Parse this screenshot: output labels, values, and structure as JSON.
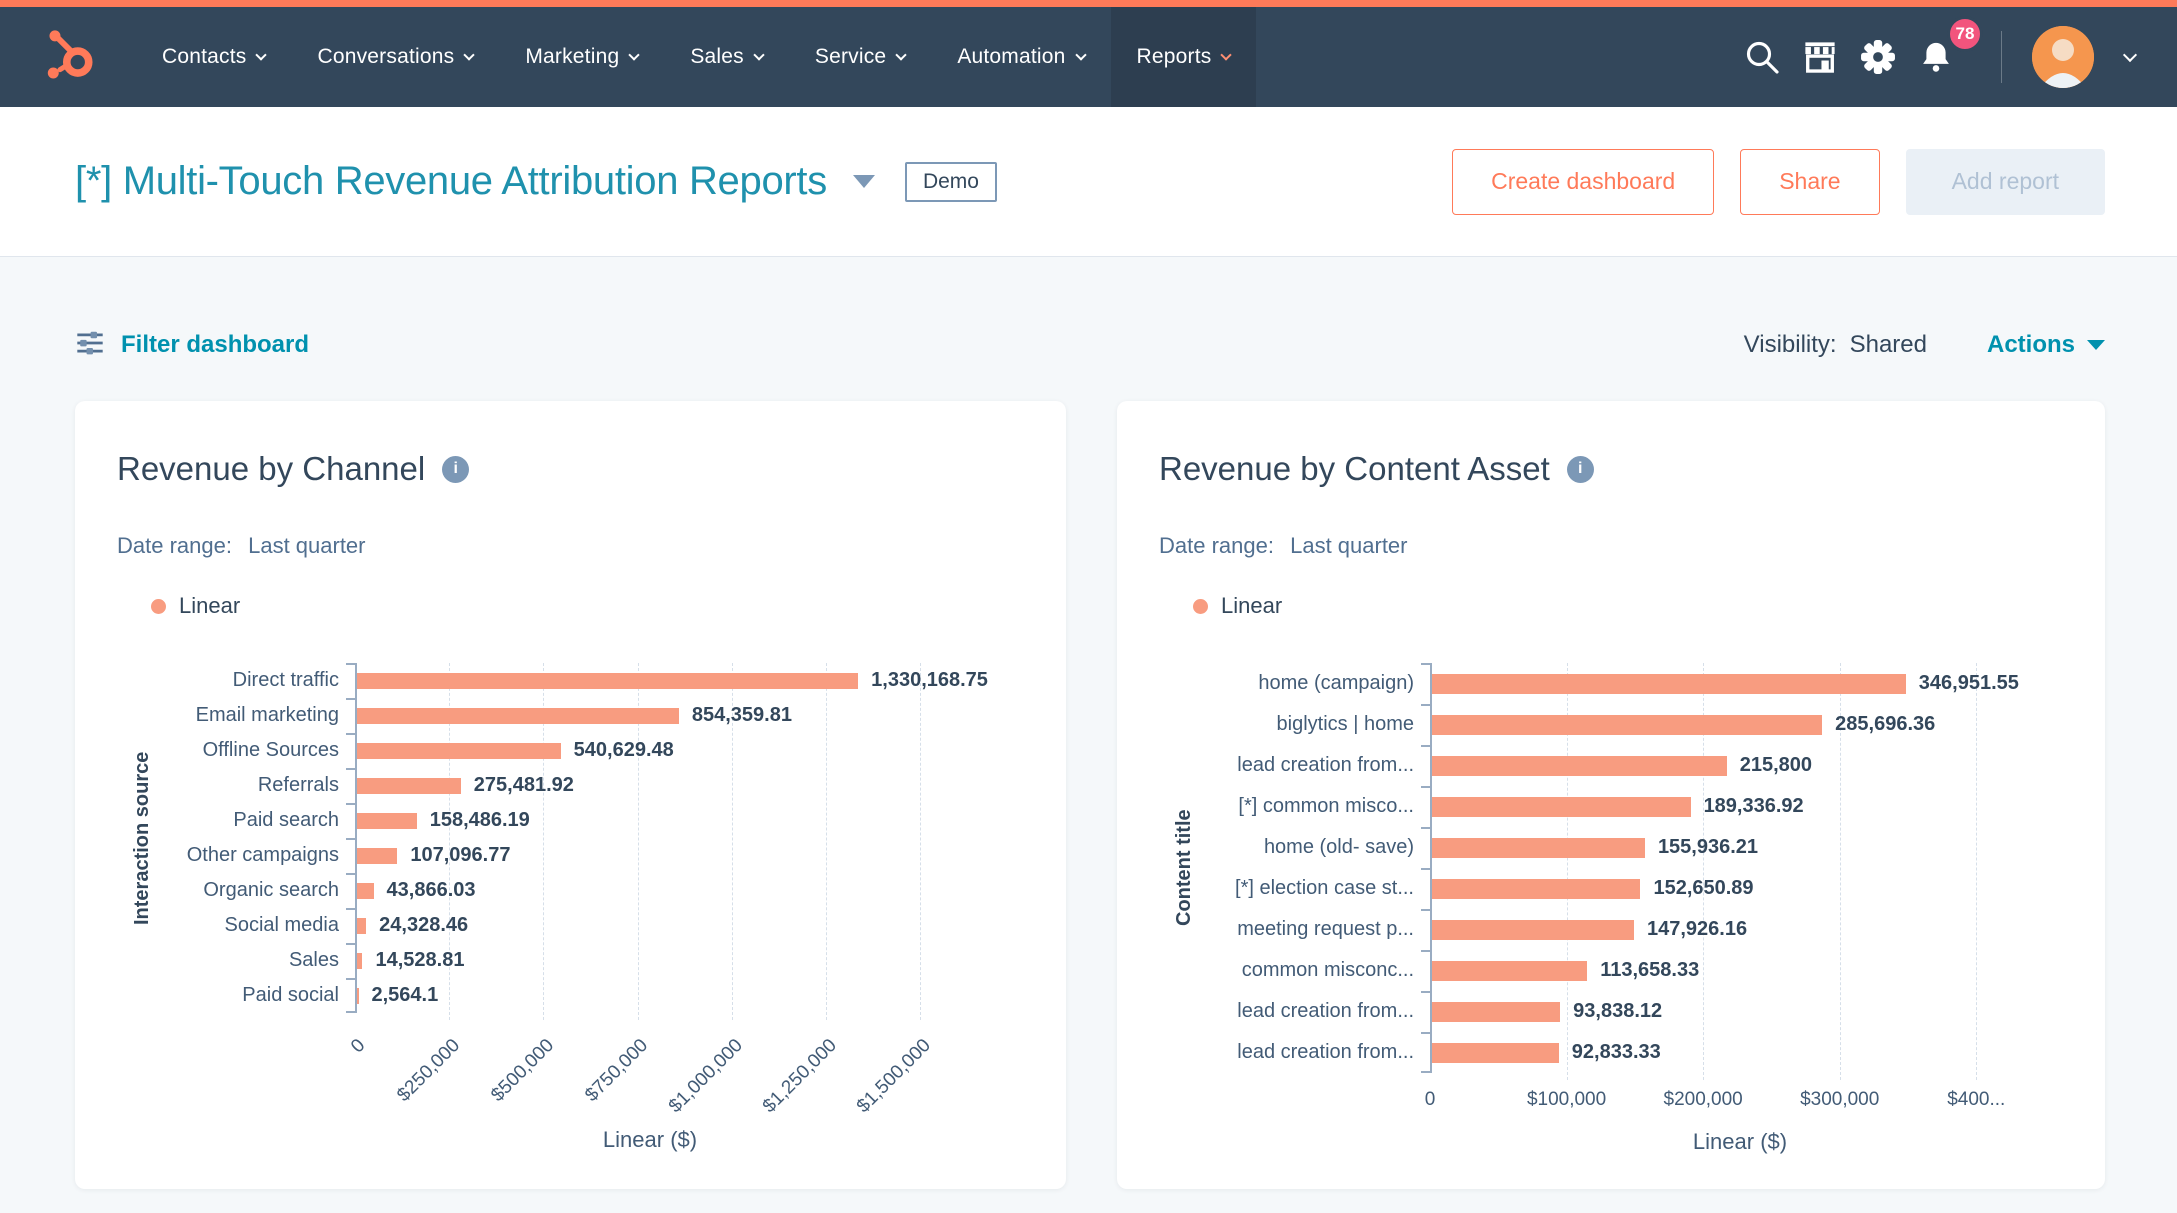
{
  "nav": {
    "items": [
      {
        "label": "Contacts"
      },
      {
        "label": "Conversations"
      },
      {
        "label": "Marketing"
      },
      {
        "label": "Sales"
      },
      {
        "label": "Service"
      },
      {
        "label": "Automation"
      },
      {
        "label": "Reports",
        "active": true
      }
    ],
    "notification_count": "78"
  },
  "header": {
    "title": "[*] Multi-Touch Revenue Attribution Reports",
    "badge": "Demo",
    "buttons": {
      "create_dashboard": "Create dashboard",
      "share": "Share",
      "add_report": "Add report"
    }
  },
  "toolbar": {
    "filter_label": "Filter dashboard",
    "visibility_label": "Visibility:",
    "visibility_value": "Shared",
    "actions_label": "Actions"
  },
  "colors": {
    "brand_orange": "#ff7a59",
    "nav_bg": "#33475b",
    "title_teal": "#1f91ad",
    "link_teal": "#0091ae",
    "bar_salmon": "#f89c80",
    "text_navy": "#33475b",
    "notification_pink": "#f2547d",
    "page_bg": "#f5f8fa"
  },
  "chart_data": [
    {
      "type": "bar",
      "orientation": "horizontal",
      "title": "Revenue by Channel",
      "date_range_label": "Date range:",
      "date_range": "Last quarter",
      "legend_label": "Linear",
      "legend_position": "top-left",
      "ylabel": "Interaction source",
      "xlabel": "Linear ($)",
      "grid": "dashed-vertical",
      "categories": [
        "Direct traffic",
        "Email marketing",
        "Offline Sources",
        "Referrals",
        "Paid search",
        "Other campaigns",
        "Organic search",
        "Social media",
        "Sales",
        "Paid social"
      ],
      "values": [
        1330168.75,
        854359.81,
        540629.48,
        275481.92,
        158486.19,
        107096.77,
        43866.03,
        24328.46,
        14528.81,
        2564.1
      ],
      "value_labels": [
        "1,330,168.75",
        "854,359.81",
        "540,629.48",
        "275,481.92",
        "158,486.19",
        "107,096.77",
        "43,866.03",
        "24,328.46",
        "14,528.81",
        "2,564.1"
      ],
      "x_ticks": [
        {
          "value": 0,
          "label": "0"
        },
        {
          "value": 250000,
          "label": "$250,000"
        },
        {
          "value": 500000,
          "label": "$500,000"
        },
        {
          "value": 750000,
          "label": "$750,000"
        },
        {
          "value": 1000000,
          "label": "$1,000,000"
        },
        {
          "value": 1250000,
          "label": "$1,250,000"
        },
        {
          "value": 1500000,
          "label": "$1,500,000"
        }
      ],
      "xlim": [
        0,
        1566000
      ]
    },
    {
      "type": "bar",
      "orientation": "horizontal",
      "title": "Revenue by Content Asset",
      "date_range_label": "Date range:",
      "date_range": "Last quarter",
      "legend_label": "Linear",
      "legend_position": "top-left",
      "ylabel": "Content title",
      "xlabel": "Linear ($)",
      "grid": "dashed-vertical",
      "categories": [
        "home (campaign)",
        "biglytics | home",
        "lead creation from...",
        "[*] common misco...",
        "home (old- save)",
        "[*] election case st...",
        "meeting request p...",
        "common misconc...",
        "lead creation from...",
        "lead creation from..."
      ],
      "values": [
        346951.55,
        285696.36,
        215800,
        189336.92,
        155936.21,
        152650.89,
        147926.16,
        113658.33,
        93838.12,
        92833.33
      ],
      "value_labels": [
        "346,951.55",
        "285,696.36",
        "215,800",
        "189,336.92",
        "155,936.21",
        "152,650.89",
        "147,926.16",
        "113,658.33",
        "93,838.12",
        "92,833.33"
      ],
      "x_ticks": [
        {
          "value": 0,
          "label": "0"
        },
        {
          "value": 100000,
          "label": "$100,000"
        },
        {
          "value": 200000,
          "label": "$200,000"
        },
        {
          "value": 300000,
          "label": "$300,000"
        },
        {
          "value": 400000,
          "label": "$400..."
        }
      ],
      "xlim": [
        0,
        454000
      ]
    }
  ]
}
